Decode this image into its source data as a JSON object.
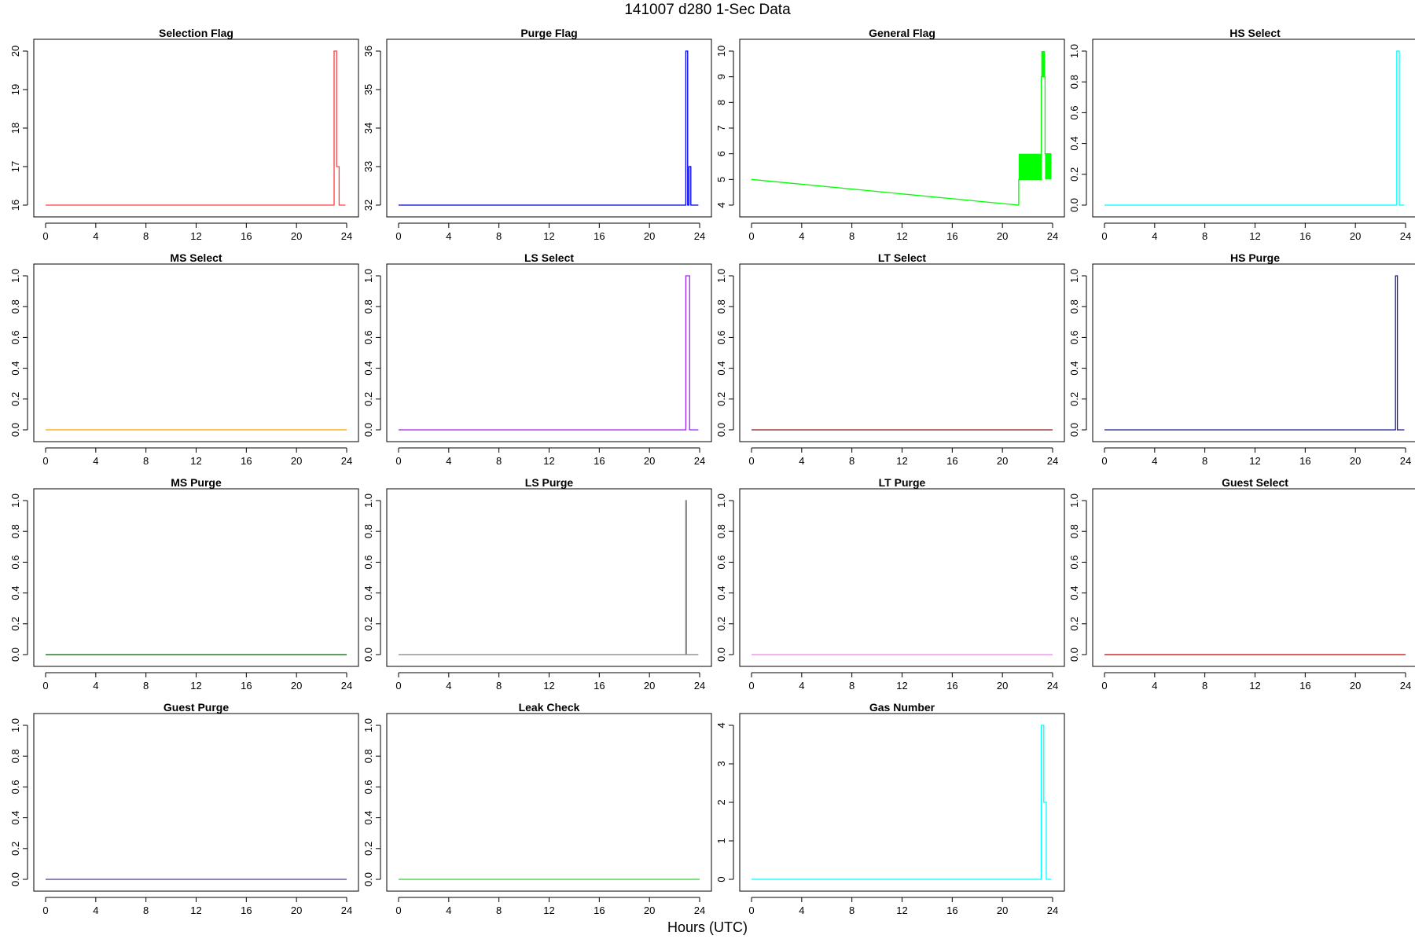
{
  "title": "141007   d280   1-Sec Data",
  "xlabel": "Hours (UTC)",
  "xticks": [
    0,
    4,
    8,
    12,
    16,
    20,
    24
  ],
  "chart_data": [
    {
      "type": "line",
      "title": "Selection Flag",
      "color": "#ff4040",
      "ylim": [
        16,
        20
      ],
      "yticks": [
        16,
        17,
        18,
        19,
        20
      ],
      "xlim": [
        0,
        24
      ],
      "x": [
        0,
        23.0,
        23.0,
        23.2,
        23.2,
        23.4,
        23.4,
        23.9
      ],
      "y": [
        16,
        16,
        20,
        20,
        17,
        17,
        16,
        16
      ]
    },
    {
      "type": "line",
      "title": "Purge Flag",
      "color": "#0000dd",
      "ylim": [
        32,
        36
      ],
      "yticks": [
        32,
        33,
        34,
        35,
        36
      ],
      "xlim": [
        0,
        24
      ],
      "x": [
        0,
        22.9,
        22.9,
        23.05,
        23.05,
        23.15,
        23.15,
        23.3,
        23.3,
        23.9
      ],
      "y": [
        32,
        32,
        36,
        36,
        32,
        32,
        33,
        33,
        32,
        32
      ]
    },
    {
      "type": "line",
      "title": "General Flag",
      "color": "#00ff00",
      "ylim": [
        4,
        10
      ],
      "yticks": [
        4,
        5,
        6,
        7,
        8,
        9,
        10
      ],
      "xlim": [
        0,
        24
      ],
      "x": [
        0,
        21.3,
        21.3,
        23.1,
        23.1,
        23.4,
        23.4,
        23.9
      ],
      "y": [
        5,
        4,
        5,
        5,
        9,
        9,
        6,
        6
      ],
      "bands": [
        {
          "x": [
            21.3,
            23.1
          ],
          "y": [
            5,
            6
          ]
        },
        {
          "x": [
            23.1,
            23.4
          ],
          "y": [
            9,
            10
          ]
        },
        {
          "x": [
            23.4,
            23.9
          ],
          "y": [
            5,
            6
          ]
        }
      ]
    },
    {
      "type": "line",
      "title": "HS Select",
      "color": "#00ffff",
      "ylim": [
        0,
        1
      ],
      "yticks": [
        0.0,
        0.2,
        0.4,
        0.6,
        0.8,
        1.0
      ],
      "xlim": [
        0,
        24
      ],
      "x": [
        0,
        23.3,
        23.3,
        23.5,
        23.5,
        23.9
      ],
      "y": [
        0,
        0,
        1,
        1,
        0,
        0
      ]
    },
    {
      "type": "line",
      "title": "MS Select",
      "color": "#ffa500",
      "ylim": [
        0,
        1
      ],
      "yticks": [
        0.0,
        0.2,
        0.4,
        0.6,
        0.8,
        1.0
      ],
      "xlim": [
        0,
        24
      ],
      "x": [
        0,
        24
      ],
      "y": [
        0,
        0
      ]
    },
    {
      "type": "line",
      "title": "LS Select",
      "color": "#a020f0",
      "ylim": [
        0,
        1
      ],
      "yticks": [
        0.0,
        0.2,
        0.4,
        0.6,
        0.8,
        1.0
      ],
      "xlim": [
        0,
        24
      ],
      "x": [
        0,
        22.9,
        22.9,
        23.2,
        23.2,
        23.9
      ],
      "y": [
        0,
        0,
        1,
        1,
        0,
        0
      ]
    },
    {
      "type": "line",
      "title": "LT Select",
      "color": "#8b1a1a",
      "ylim": [
        0,
        1
      ],
      "yticks": [
        0.0,
        0.2,
        0.4,
        0.6,
        0.8,
        1.0
      ],
      "xlim": [
        0,
        24
      ],
      "x": [
        0,
        24
      ],
      "y": [
        0,
        0
      ]
    },
    {
      "type": "line",
      "title": "HS Purge",
      "color": "#1c1c8b",
      "ylim": [
        0,
        1
      ],
      "yticks": [
        0.0,
        0.2,
        0.4,
        0.6,
        0.8,
        1.0
      ],
      "xlim": [
        0,
        24
      ],
      "x": [
        0,
        23.2,
        23.2,
        23.35,
        23.35,
        23.9
      ],
      "y": [
        0,
        0,
        1,
        1,
        0,
        0
      ]
    },
    {
      "type": "line",
      "title": "MS Purge",
      "color": "#006400",
      "ylim": [
        0,
        1
      ],
      "yticks": [
        0.0,
        0.2,
        0.4,
        0.6,
        0.8,
        1.0
      ],
      "xlim": [
        0,
        24
      ],
      "x": [
        0,
        24
      ],
      "y": [
        0,
        0
      ]
    },
    {
      "type": "line",
      "title": "LS Purge",
      "color": "#7f7f7f",
      "ylim": [
        0,
        1
      ],
      "yticks": [
        0.0,
        0.2,
        0.4,
        0.6,
        0.8,
        1.0
      ],
      "xlim": [
        0,
        24
      ],
      "x": [
        0,
        22.9,
        22.9,
        22.95,
        22.95,
        23.9
      ],
      "y": [
        0,
        0,
        1,
        1,
        0,
        0
      ]
    },
    {
      "type": "line",
      "title": "LT Purge",
      "color": "#ee82ee",
      "ylim": [
        0,
        1
      ],
      "yticks": [
        0.0,
        0.2,
        0.4,
        0.6,
        0.8,
        1.0
      ],
      "xlim": [
        0,
        24
      ],
      "x": [
        0,
        24
      ],
      "y": [
        0,
        0
      ]
    },
    {
      "type": "line",
      "title": "Guest Select",
      "color": "#cc0000",
      "ylim": [
        0,
        1
      ],
      "yticks": [
        0.0,
        0.2,
        0.4,
        0.6,
        0.8,
        1.0
      ],
      "xlim": [
        0,
        24
      ],
      "x": [
        0,
        24
      ],
      "y": [
        0,
        0
      ]
    },
    {
      "type": "line",
      "title": "Guest Purge",
      "color": "#483d8b",
      "ylim": [
        0,
        1
      ],
      "yticks": [
        0.0,
        0.2,
        0.4,
        0.6,
        0.8,
        1.0
      ],
      "xlim": [
        0,
        24
      ],
      "x": [
        0,
        24
      ],
      "y": [
        0,
        0
      ]
    },
    {
      "type": "line",
      "title": "Leak Check",
      "color": "#32cd32",
      "ylim": [
        0,
        1
      ],
      "yticks": [
        0.0,
        0.2,
        0.4,
        0.6,
        0.8,
        1.0
      ],
      "xlim": [
        0,
        24
      ],
      "x": [
        0,
        24
      ],
      "y": [
        0,
        0
      ]
    },
    {
      "type": "line",
      "title": "Gas Number",
      "color": "#00ffff",
      "ylim": [
        0,
        4
      ],
      "yticks": [
        0,
        1,
        2,
        3,
        4
      ],
      "xlim": [
        0,
        24
      ],
      "x": [
        0,
        23.1,
        23.1,
        23.3,
        23.3,
        23.5,
        23.5,
        23.9
      ],
      "y": [
        0,
        0,
        4,
        4,
        2,
        2,
        0,
        0
      ]
    }
  ]
}
